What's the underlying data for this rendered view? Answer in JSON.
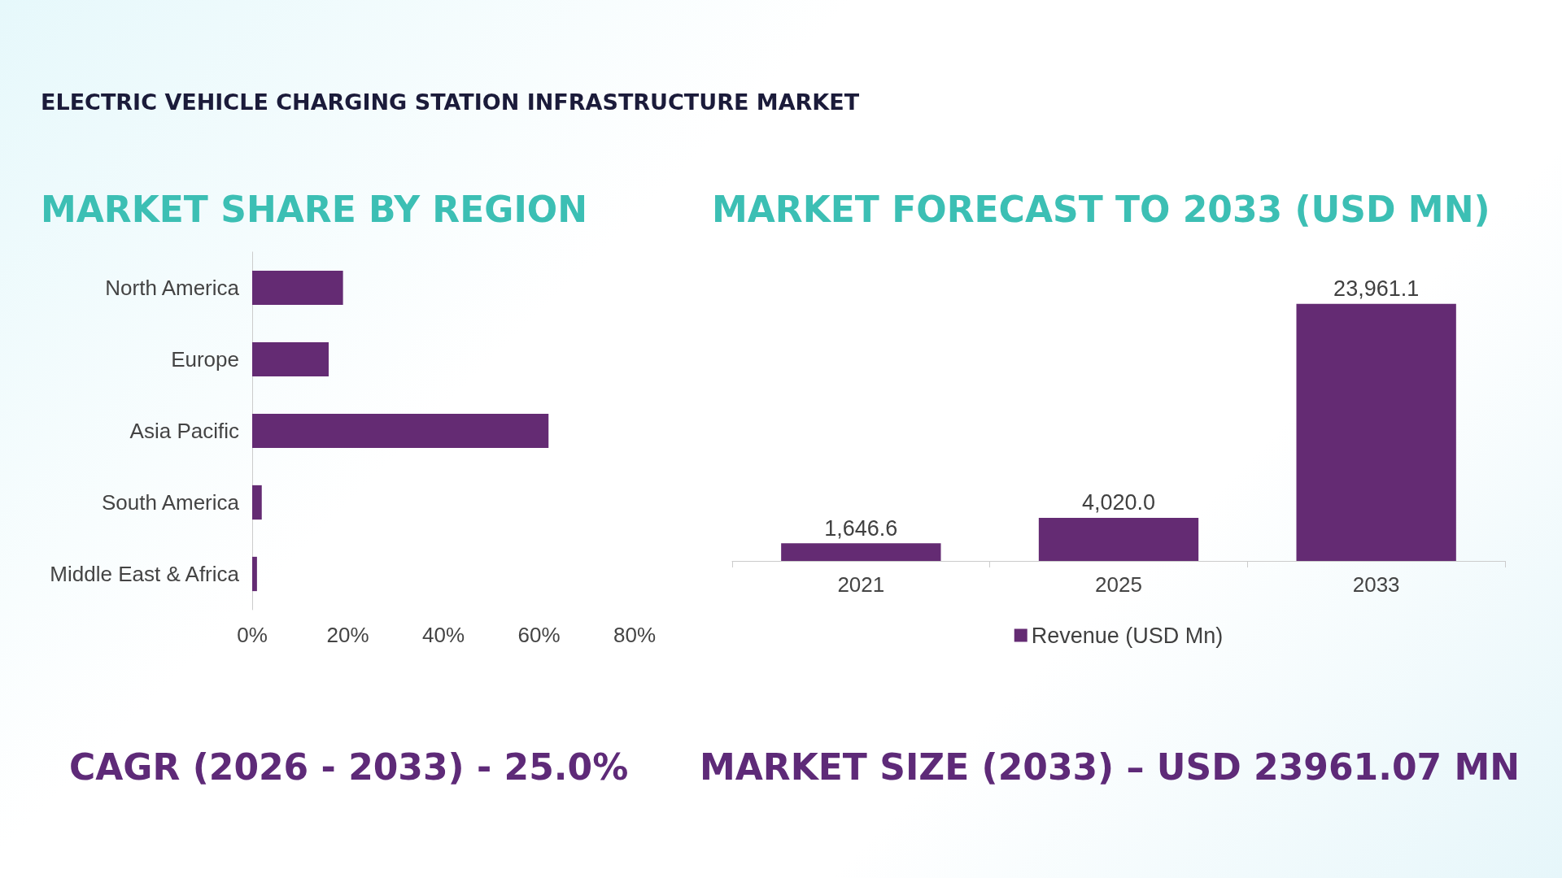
{
  "chart_data": [
    {
      "type": "bar",
      "title": "ELECTRIC VEHICLE CHARGING STATION INFRASTRUCTURE MARKET",
      "subtitle": "MARKET SHARE BY REGION",
      "orientation": "horizontal",
      "categories": [
        "North America",
        "Europe",
        "Asia Pacific",
        "South America",
        "Middle East & Africa"
      ],
      "series": [
        {
          "color": "#642b73",
          "values": [
            19,
            16,
            62,
            2,
            1
          ]
        }
      ],
      "xlim": [
        0,
        80
      ],
      "xticks": [
        {
          "value": 0,
          "label": "0%"
        },
        {
          "value": 20,
          "label": "20%"
        },
        {
          "value": 40,
          "label": "40%"
        },
        {
          "value": 60,
          "label": "60%"
        },
        {
          "value": 80,
          "label": "80%"
        }
      ],
      "grid": false,
      "legend": false,
      "annotations": [
        "CAGR (2026 - 2033) - 25.0%"
      ]
    },
    {
      "type": "bar",
      "title": "MARKET FORECAST TO 2033 (USD MN)",
      "categories": [
        "2021",
        "2025",
        "2033"
      ],
      "series": [
        {
          "name": "Revenue (USD Mn)",
          "color": "#642b73",
          "values": [
            1646.6,
            4020.0,
            23961.1
          ],
          "value_labels": [
            "1,646.6",
            "4,020.0",
            "23,961.1"
          ]
        }
      ],
      "tick_labels": "x",
      "grid": false,
      "legend": "bottom",
      "annotations": [
        "MARKET SIZE (2033) – USD 23961.07 MN"
      ]
    }
  ]
}
